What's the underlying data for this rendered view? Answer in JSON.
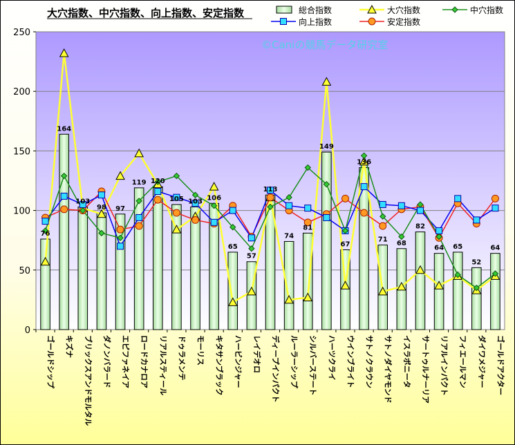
{
  "colors": {
    "plot_bg_top": "#ad99ff",
    "plot_bg_bottom": "#ffffff",
    "bar_fill": "#c8f0c0",
    "bar_stroke": "#000000",
    "daiana": "#ffff33",
    "chuuana": "#1a8f1a",
    "koujou": "#0000ee",
    "antei": "#ee2222",
    "watermark": "#55d0e6"
  },
  "chart_data": {
    "type": "bar",
    "title": "大穴指数、中穴指数、向上指数、安定指数",
    "watermark": "©Caniの競馬データ研究室",
    "ylim": [
      0,
      250
    ],
    "yticks": [
      "0",
      "50",
      "100",
      "150",
      "200",
      "250"
    ],
    "grid": true,
    "legend_position": "top-right",
    "categories": [
      "ゴールドシップ",
      "キズナ",
      "ブリックスアンドモルタル",
      "ダノンバラード",
      "エピファネイア",
      "ロードカナロア",
      "リアルスティール",
      "ドゥラメンテ",
      "モーリス",
      "キタサンブラック",
      "ハービンジャー",
      "レイデオロ",
      "ディープインパクト",
      "ルーラーシップ",
      "シルバーステート",
      "ハーツクライ",
      "ウインブライト",
      "サトノクラウン",
      "サトノダイヤモンド",
      "イスラボニータ",
      "サートゥルナーリア",
      "リアルインパクト",
      "フィエールマン",
      "ダイワメジャー",
      "ゴールドアクター"
    ],
    "series": [
      {
        "name": "総合指数",
        "kind": "bar",
        "values": [
          76,
          164,
          103,
          98,
          97,
          119,
          120,
          105,
          103,
          106,
          65,
          57,
          113,
          74,
          81,
          149,
          67,
          136,
          71,
          68,
          82,
          64,
          65,
          52,
          64
        ]
      },
      {
        "name": "大穴指数",
        "kind": "line",
        "marker": "triangle",
        "values": [
          57,
          232,
          102,
          97,
          129,
          148,
          122,
          84,
          95,
          120,
          23,
          32,
          111,
          25,
          27,
          208,
          37,
          141,
          32,
          36,
          50,
          37,
          45,
          33,
          45
        ]
      },
      {
        "name": "中穴指数",
        "kind": "line",
        "marker": "diamond",
        "values": [
          83,
          129,
          100,
          81,
          77,
          108,
          124,
          129,
          113,
          104,
          86,
          68,
          103,
          111,
          136,
          122,
          83,
          146,
          95,
          78,
          105,
          78,
          46,
          35,
          47
        ]
      },
      {
        "name": "向上指数",
        "kind": "line",
        "marker": "square",
        "values": [
          91,
          112,
          105,
          113,
          70,
          94,
          116,
          111,
          106,
          90,
          100,
          77,
          117,
          104,
          102,
          94,
          83,
          120,
          105,
          104,
          100,
          83,
          110,
          92,
          102
        ]
      },
      {
        "name": "安定指数",
        "kind": "line",
        "marker": "circle",
        "values": [
          94,
          101,
          100,
          116,
          84,
          87,
          109,
          98,
          92,
          89,
          104,
          78,
          111,
          100,
          90,
          97,
          110,
          98,
          87,
          101,
          103,
          77,
          106,
          89,
          110
        ]
      }
    ],
    "data_labels": [
      "76",
      "164",
      "103",
      "98",
      "97",
      "119",
      "120",
      "105",
      "103",
      "106",
      "65",
      "57",
      "113",
      "74",
      "81",
      "149",
      "67",
      "136",
      "71",
      "68",
      "82",
      "64",
      "65",
      "52",
      "64"
    ]
  }
}
